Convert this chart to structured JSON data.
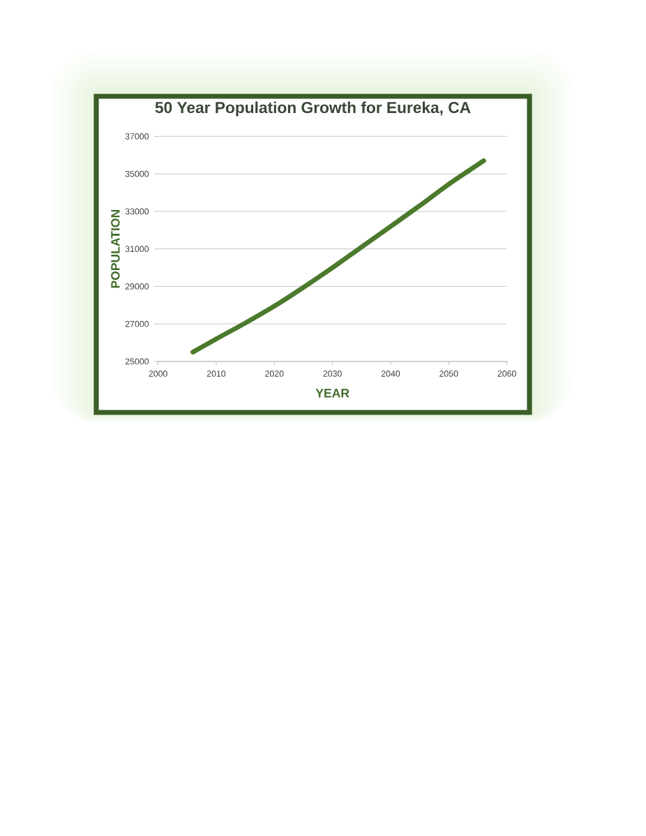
{
  "chart_data": {
    "type": "line",
    "title": "50 Year Population Growth for Eureka, CA",
    "xlabel": "YEAR",
    "ylabel": "POPULATION",
    "x": [
      2006,
      2010,
      2015,
      2020,
      2025,
      2030,
      2035,
      2040,
      2045,
      2050,
      2056
    ],
    "series": [
      {
        "color": "#4b7a2c",
        "values": [
          25500,
          26200,
          27050,
          27950,
          28950,
          30000,
          31100,
          32200,
          33300,
          34450,
          35700
        ]
      }
    ],
    "xlim": [
      2000,
      2060
    ],
    "xticks": [
      2000,
      2010,
      2020,
      2030,
      2040,
      2050,
      2060
    ],
    "ylim": [
      25000,
      37000
    ],
    "yticks": [
      25000,
      27000,
      29000,
      31000,
      33000,
      35000,
      37000
    ],
    "grid": "y",
    "marker": "none",
    "line_style": "solid"
  }
}
